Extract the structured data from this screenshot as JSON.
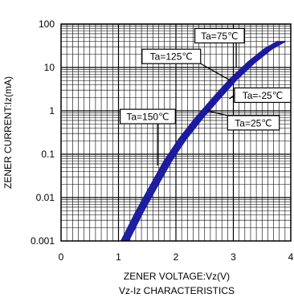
{
  "chart_data": {
    "type": "line",
    "title": "",
    "caption": "Vz-Iz CHARACTERISTICS",
    "xlabel": "ZENER VOLTAGE:Vz(V)",
    "ylabel": "ZENER CURRENT:Iz(mA)",
    "xlim": [
      0,
      4
    ],
    "ylim": [
      0.001,
      100
    ],
    "yscale": "log",
    "grid": true,
    "x_ticks": [
      "0",
      "1",
      "2",
      "3",
      "4"
    ],
    "y_ticks": [
      "0.001",
      "0.01",
      "0.1",
      "1",
      "10",
      "100"
    ],
    "line_color": "#1a1aa0",
    "series": [
      {
        "name": "Ta=150℃",
        "x": [
          1.05,
          1.3,
          1.55,
          1.8,
          2.05,
          2.35,
          2.65,
          2.95,
          3.25,
          3.55,
          3.78
        ],
        "y": [
          0.001,
          0.0045,
          0.018,
          0.07,
          0.22,
          0.7,
          2.0,
          5.5,
          13,
          27,
          40
        ]
      },
      {
        "name": "Ta=125℃",
        "x": [
          1.08,
          1.33,
          1.58,
          1.83,
          2.08,
          2.38,
          2.68,
          2.98,
          3.28,
          3.58,
          3.81
        ],
        "y": [
          0.001,
          0.0045,
          0.018,
          0.07,
          0.22,
          0.7,
          2.0,
          5.5,
          13,
          27,
          40
        ]
      },
      {
        "name": "Ta=75℃",
        "x": [
          1.11,
          1.36,
          1.61,
          1.86,
          2.11,
          2.41,
          2.71,
          3.01,
          3.31,
          3.61,
          3.84
        ],
        "y": [
          0.001,
          0.0045,
          0.018,
          0.07,
          0.22,
          0.7,
          2.0,
          5.5,
          13,
          27,
          40
        ]
      },
      {
        "name": "Ta=25℃",
        "x": [
          1.14,
          1.39,
          1.64,
          1.89,
          2.14,
          2.44,
          2.74,
          3.04,
          3.34,
          3.64,
          3.87
        ],
        "y": [
          0.001,
          0.0045,
          0.018,
          0.07,
          0.22,
          0.7,
          2.0,
          5.5,
          13,
          27,
          40
        ]
      },
      {
        "name": "Ta=-25℃",
        "x": [
          1.17,
          1.42,
          1.67,
          1.92,
          2.17,
          2.47,
          2.77,
          3.07,
          3.37,
          3.67,
          3.9
        ],
        "y": [
          0.001,
          0.0045,
          0.018,
          0.07,
          0.22,
          0.7,
          2.0,
          5.5,
          13,
          27,
          40
        ]
      }
    ],
    "callouts": [
      {
        "label": "Ta=75℃",
        "box_x": 2.33,
        "box_y": 54,
        "w": 0.86,
        "tip_x": 3.05,
        "tip_y": 10
      },
      {
        "label": "Ta=125℃",
        "box_x": 1.41,
        "box_y": 18,
        "w": 1.02,
        "tip_x": 2.95,
        "tip_y": 5
      },
      {
        "label": "Ta=-25℃",
        "box_x": 3.02,
        "box_y": 2.3,
        "w": 0.98,
        "tip_x": 2.93,
        "tip_y": 1.9
      },
      {
        "label": "Ta=150℃",
        "box_x": 1.03,
        "box_y": 0.74,
        "w": 0.96,
        "tip_x": 1.68,
        "tip_y": 0.055
      },
      {
        "label": "Ta=25℃",
        "box_x": 2.9,
        "box_y": 0.53,
        "w": 0.9,
        "tip_x": 2.55,
        "tip_y": 1.0
      }
    ]
  }
}
